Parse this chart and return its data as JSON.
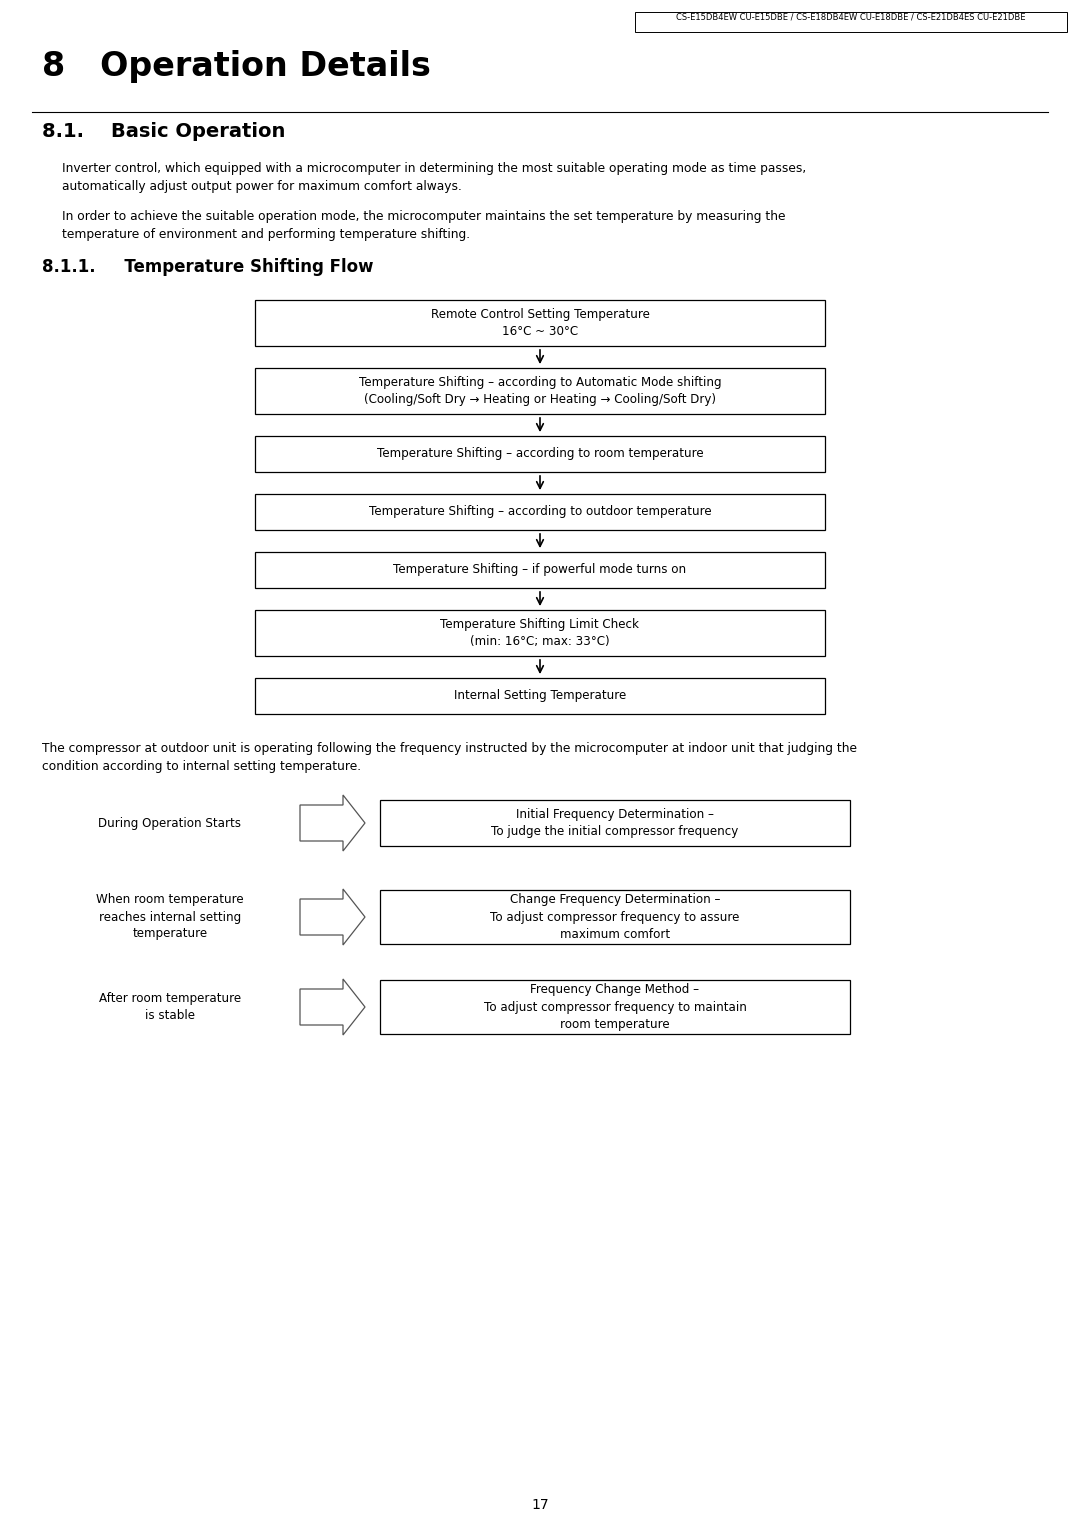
{
  "header_text": "CS-E15DB4EW CU-E15DBE / CS-E18DB4EW CU-E18DBE / CS-E21DB4ES CU-E21DBE",
  "title": "8   Operation Details",
  "section_title": "8.1.    Basic Operation",
  "para1_lines": [
    "Inverter control, which equipped with a microcomputer in determining the most suitable operating mode as time passes,",
    "automatically adjust output power for maximum comfort always."
  ],
  "para2_lines": [
    "In order to achieve the suitable operation mode, the microcomputer maintains the set temperature by measuring the",
    "temperature of environment and performing temperature shifting."
  ],
  "subsection_title": "8.1.1.     Temperature Shifting Flow",
  "flow_boxes": [
    {
      "text": "Remote Control Setting Temperature\n16°C ~ 30°C"
    },
    {
      "text": "Temperature Shifting – according to Automatic Mode shifting\n(Cooling/Soft Dry → Heating or Heating → Cooling/Soft Dry)"
    },
    {
      "text": "Temperature Shifting – according to room temperature"
    },
    {
      "text": "Temperature Shifting – according to outdoor temperature"
    },
    {
      "text": "Temperature Shifting – if powerful mode turns on"
    },
    {
      "text": "Temperature Shifting Limit Check\n(min: 16°C; max: 33°C)"
    },
    {
      "text": "Internal Setting Temperature"
    }
  ],
  "bottom_para_lines": [
    "The compressor at outdoor unit is operating following the frequency instructed by the microcomputer at indoor unit that judging the",
    "condition according to internal setting temperature."
  ],
  "side_items": [
    {
      "left_text": "During Operation Starts",
      "right_text": "Initial Frequency Determination –\nTo judge the initial compressor frequency"
    },
    {
      "left_text": "When room temperature\nreaches internal setting\ntemperature",
      "right_text": "Change Frequency Determination –\nTo adjust compressor frequency to assure\nmaximum comfort"
    },
    {
      "left_text": "After room temperature\nis stable",
      "right_text": "Frequency Change Method –\nTo adjust compressor frequency to maintain\nroom temperature"
    }
  ],
  "page_number": "17",
  "bg_color": "#ffffff",
  "text_color": "#000000",
  "box_edge_color": "#000000",
  "arrow_color": "#000000"
}
